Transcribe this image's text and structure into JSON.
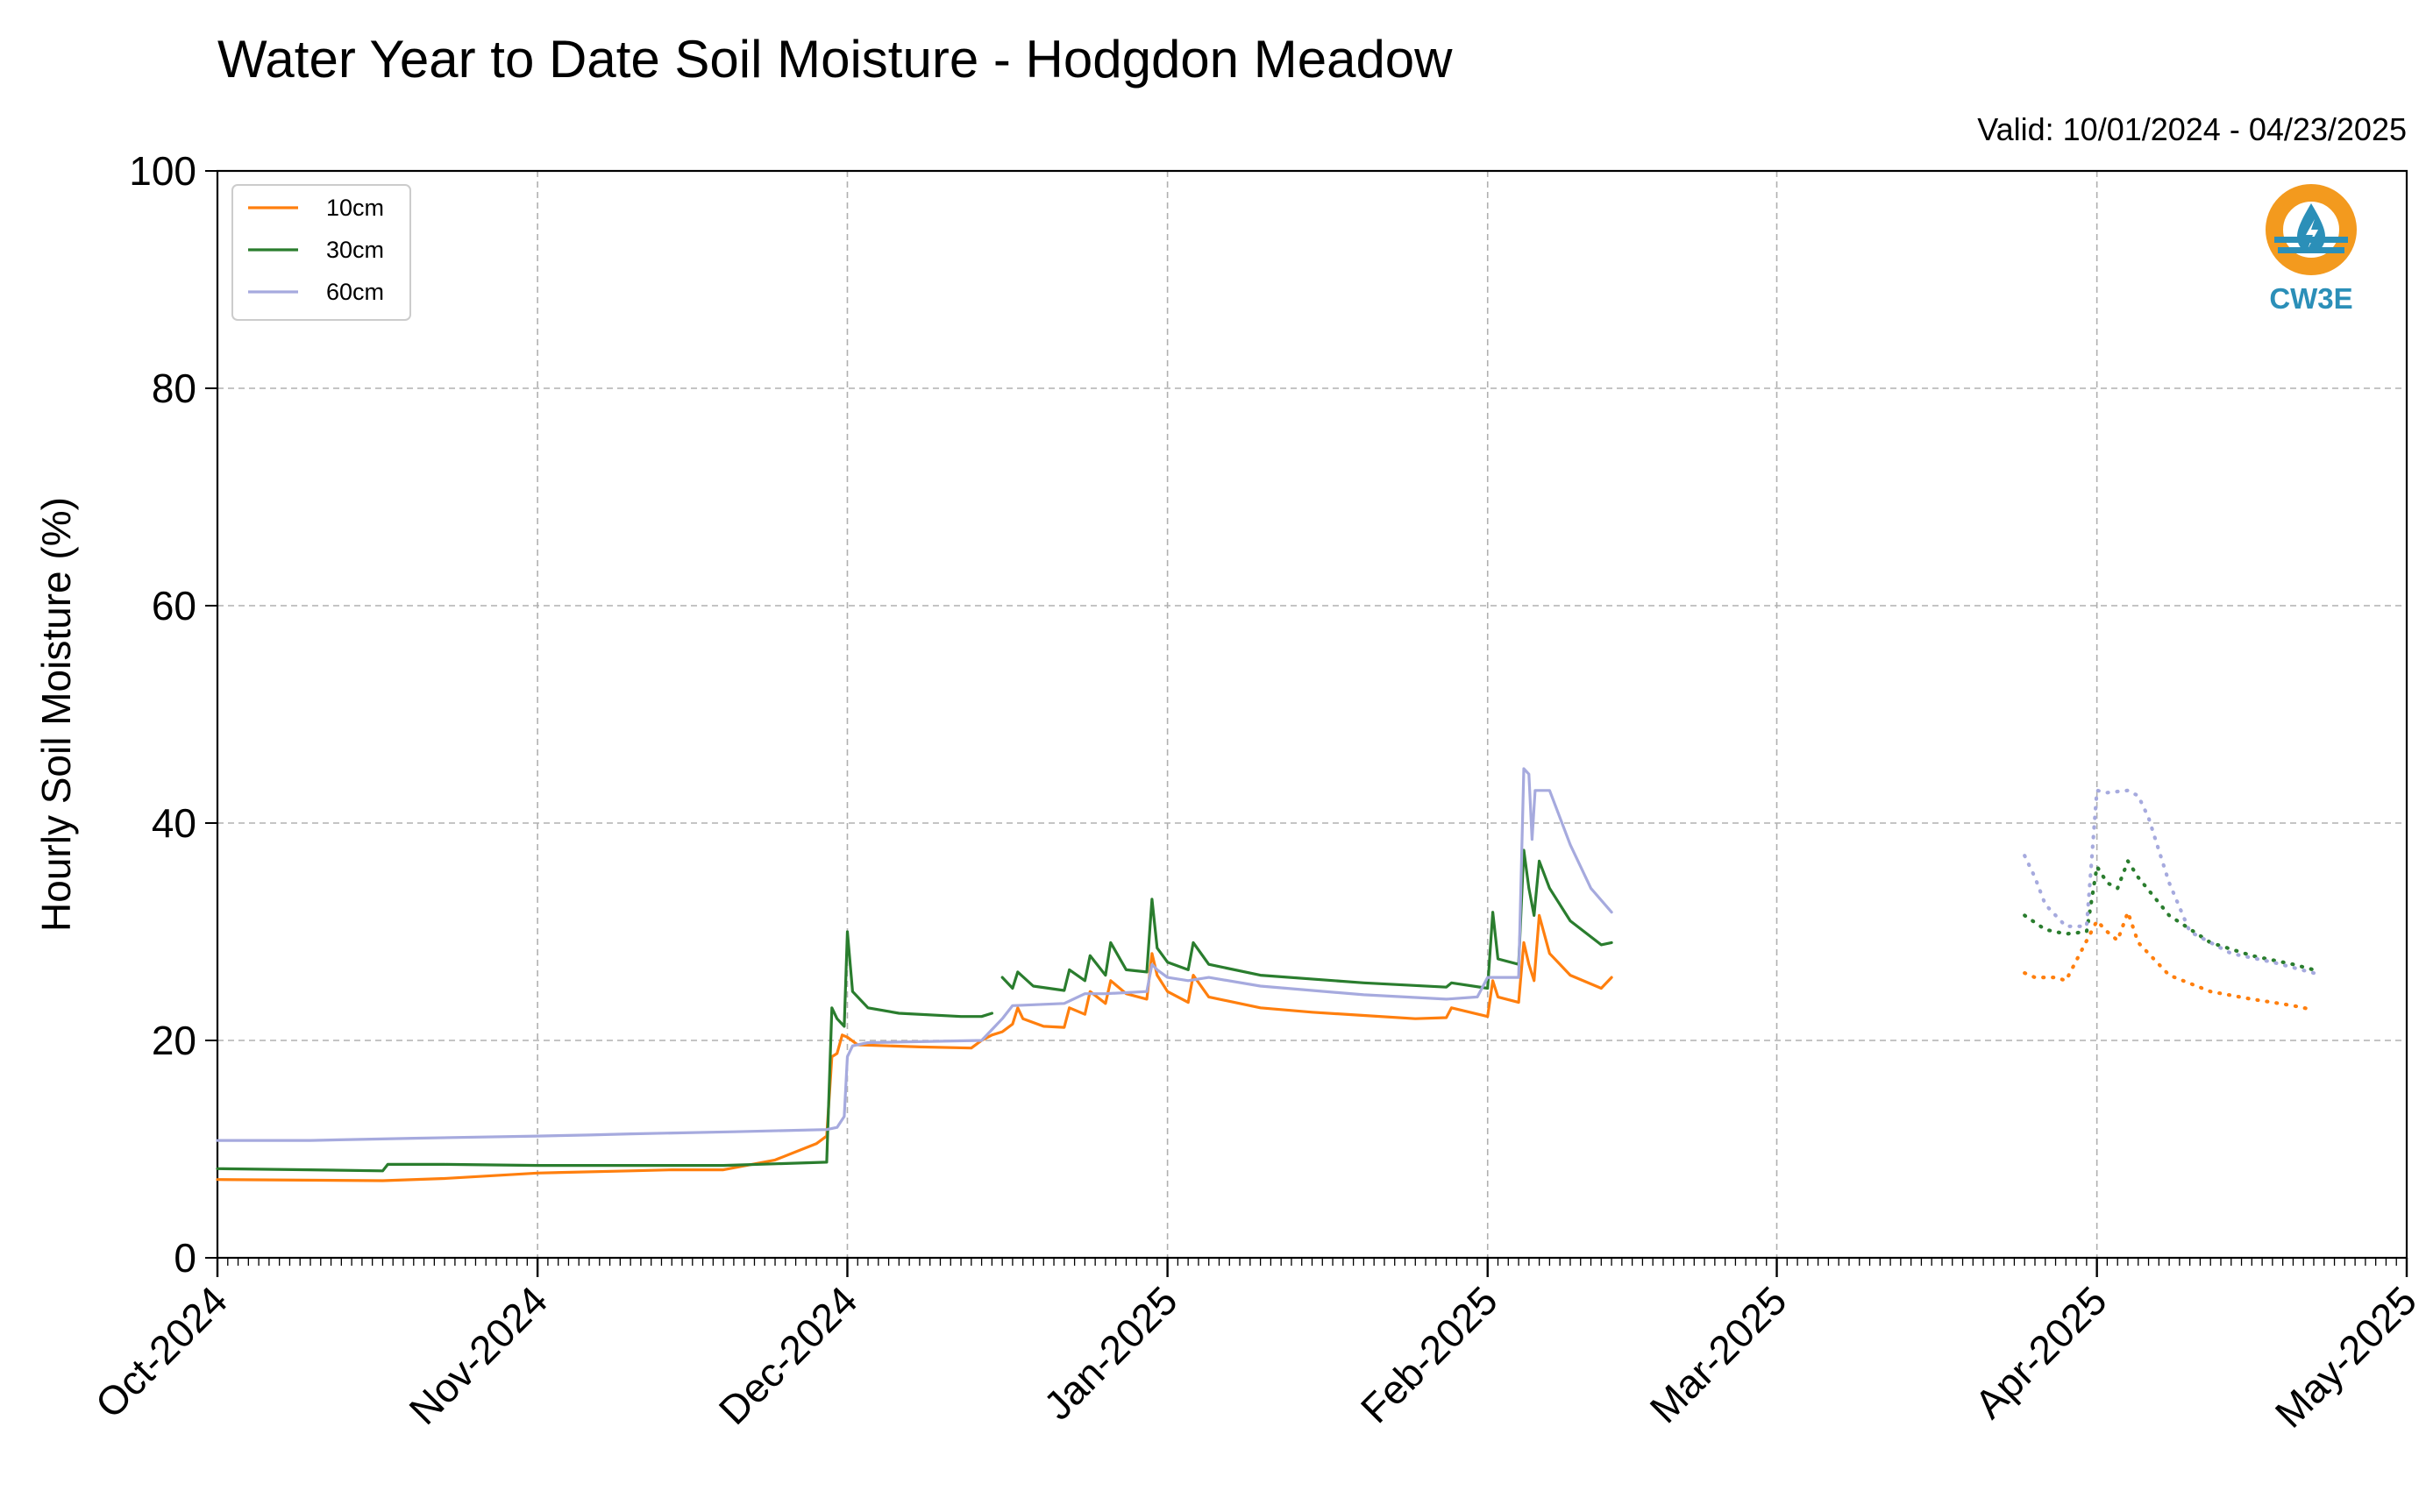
{
  "chart_data": {
    "type": "line",
    "title": "Water Year to Date Soil Moisture - Hodgdon Meadow",
    "subtitle": "Valid: 10/01/2024 - 04/23/2025",
    "xlabel": "",
    "ylabel": "Hourly Soil Moisture (%)",
    "ylim": [
      0,
      100
    ],
    "yticks": [
      0,
      20,
      40,
      60,
      80,
      100
    ],
    "xlim": [
      "2024-10-01",
      "2025-05-01"
    ],
    "xticks": [
      {
        "date": "2024-10-01",
        "label": "Oct-2024"
      },
      {
        "date": "2024-11-01",
        "label": "Nov-2024"
      },
      {
        "date": "2024-12-01",
        "label": "Dec-2024"
      },
      {
        "date": "2025-01-01",
        "label": "Jan-2025"
      },
      {
        "date": "2025-02-01",
        "label": "Feb-2025"
      },
      {
        "date": "2025-03-01",
        "label": "Mar-2025"
      },
      {
        "date": "2025-04-01",
        "label": "Apr-2025"
      },
      {
        "date": "2025-05-01",
        "label": "May-2025"
      }
    ],
    "grid": true,
    "legend_position": "top-left",
    "series": [
      {
        "name": "10cm",
        "color": "#ff7f0e",
        "segments": [
          {
            "style": "solid",
            "points": [
              [
                "2024-10-01",
                7.2
              ],
              [
                "2024-10-17",
                7.1
              ],
              [
                "2024-10-23",
                7.3
              ],
              [
                "2024-11-01",
                7.8
              ],
              [
                "2024-11-10",
                8.0
              ],
              [
                "2024-11-14",
                8.1
              ],
              [
                "2024-11-19",
                8.1
              ],
              [
                "2024-11-24",
                9.0
              ],
              [
                "2024-11-28",
                10.5
              ],
              [
                "2024-11-29",
                11.2
              ],
              [
                "2024-11-29.5",
                18.5
              ],
              [
                "2024-11-30",
                18.8
              ],
              [
                "2024-11-30.5",
                20.5
              ],
              [
                "2024-12-01",
                20.3
              ],
              [
                "2024-12-02",
                19.6
              ],
              [
                "2024-12-08",
                19.4
              ],
              [
                "2024-12-13",
                19.3
              ],
              [
                "2024-12-14",
                20.0
              ],
              [
                "2024-12-15",
                20.5
              ],
              [
                "2024-12-16",
                20.8
              ],
              [
                "2024-12-17",
                21.5
              ],
              [
                "2024-12-17.5",
                23.0
              ],
              [
                "2024-12-18",
                22.0
              ],
              [
                "2024-12-20",
                21.3
              ],
              [
                "2024-12-22",
                21.2
              ],
              [
                "2024-12-22.5",
                23.0
              ],
              [
                "2024-12-24",
                22.4
              ],
              [
                "2024-12-24.5",
                24.5
              ],
              [
                "2024-12-26",
                23.4
              ],
              [
                "2024-12-26.5",
                25.5
              ],
              [
                "2024-12-28",
                24.3
              ],
              [
                "2024-12-30",
                23.8
              ],
              [
                "2024-12-30.5",
                28.0
              ],
              [
                "2024-12-31",
                26.0
              ],
              [
                "2025-01-01",
                24.5
              ],
              [
                "2025-01-03",
                23.5
              ],
              [
                "2025-01-03.5",
                26.0
              ],
              [
                "2025-01-05",
                24.0
              ],
              [
                "2025-01-10",
                23.0
              ],
              [
                "2025-01-15",
                22.6
              ],
              [
                "2025-01-20",
                22.3
              ],
              [
                "2025-01-25",
                22.0
              ],
              [
                "2025-01-28",
                22.1
              ],
              [
                "2025-01-28.5",
                23.0
              ],
              [
                "2025-02-01",
                22.2
              ],
              [
                "2025-02-01.5",
                25.5
              ],
              [
                "2025-02-02",
                24.0
              ],
              [
                "2025-02-04",
                23.5
              ],
              [
                "2025-02-04.5",
                29.0
              ],
              [
                "2025-02-05",
                27.0
              ],
              [
                "2025-02-05.5",
                25.5
              ],
              [
                "2025-02-06",
                31.5
              ],
              [
                "2025-02-07",
                28.0
              ],
              [
                "2025-02-09",
                26.0
              ],
              [
                "2025-02-12",
                24.8
              ],
              [
                "2025-02-13",
                25.8
              ]
            ]
          },
          {
            "style": "dotted",
            "points": [
              [
                "2025-03-25",
                26.2
              ],
              [
                "2025-03-26",
                25.8
              ],
              [
                "2025-03-28",
                25.8
              ],
              [
                "2025-03-29",
                25.5
              ],
              [
                "2025-04-01",
                31.0
              ],
              [
                "2025-04-02",
                30.0
              ],
              [
                "2025-04-03",
                29.2
              ],
              [
                "2025-04-04",
                31.8
              ],
              [
                "2025-04-05",
                29.0
              ],
              [
                "2025-04-08",
                26.0
              ],
              [
                "2025-04-12",
                24.5
              ],
              [
                "2025-04-16",
                23.8
              ],
              [
                "2025-04-20",
                23.2
              ],
              [
                "2025-04-22",
                22.8
              ]
            ]
          }
        ]
      },
      {
        "name": "30cm",
        "color": "#2a7d2e",
        "segments": [
          {
            "style": "solid",
            "points": [
              [
                "2024-10-01",
                8.2
              ],
              [
                "2024-10-10",
                8.1
              ],
              [
                "2024-10-17",
                8.0
              ],
              [
                "2024-10-17.5",
                8.6
              ],
              [
                "2024-10-23",
                8.6
              ],
              [
                "2024-11-01",
                8.5
              ],
              [
                "2024-11-10",
                8.5
              ],
              [
                "2024-11-19",
                8.5
              ],
              [
                "2024-11-29",
                8.8
              ],
              [
                "2024-11-29.5",
                23.0
              ],
              [
                "2024-11-30",
                22.0
              ],
              [
                "2024-11-30.7",
                21.3
              ],
              [
                "2024-12-01",
                30.0
              ],
              [
                "2024-12-01.5",
                24.5
              ],
              [
                "2024-12-03",
                23.0
              ],
              [
                "2024-12-06",
                22.5
              ],
              [
                "2024-12-12",
                22.2
              ],
              [
                "2024-12-14",
                22.2
              ],
              [
                "2024-12-15",
                22.5
              ]
            ]
          },
          {
            "style": "solid",
            "points": [
              [
                "2024-12-16",
                25.8
              ],
              [
                "2024-12-17",
                24.8
              ],
              [
                "2024-12-17.5",
                26.3
              ],
              [
                "2024-12-19",
                25.0
              ],
              [
                "2024-12-22",
                24.6
              ],
              [
                "2024-12-22.5",
                26.5
              ],
              [
                "2024-12-24",
                25.5
              ],
              [
                "2024-12-24.5",
                27.8
              ],
              [
                "2024-12-26",
                26.0
              ],
              [
                "2024-12-26.5",
                29.0
              ],
              [
                "2024-12-28",
                26.5
              ],
              [
                "2024-12-30",
                26.3
              ],
              [
                "2024-12-30.5",
                33.0
              ],
              [
                "2024-12-31",
                28.5
              ],
              [
                "2025-01-01",
                27.2
              ],
              [
                "2025-01-03",
                26.5
              ],
              [
                "2025-01-03.5",
                29.0
              ],
              [
                "2025-01-05",
                27.0
              ],
              [
                "2025-01-10",
                26.0
              ],
              [
                "2025-01-20",
                25.3
              ],
              [
                "2025-01-28",
                24.9
              ],
              [
                "2025-01-28.5",
                25.3
              ],
              [
                "2025-02-01",
                24.8
              ],
              [
                "2025-02-01.5",
                31.8
              ],
              [
                "2025-02-02",
                27.5
              ],
              [
                "2025-02-04",
                27.0
              ],
              [
                "2025-02-04.5",
                37.5
              ],
              [
                "2025-02-05",
                34.0
              ],
              [
                "2025-02-05.5",
                31.5
              ],
              [
                "2025-02-06",
                36.5
              ],
              [
                "2025-02-07",
                34.0
              ],
              [
                "2025-02-09",
                31.0
              ],
              [
                "2025-02-12",
                28.8
              ],
              [
                "2025-02-13",
                29.0
              ]
            ]
          },
          {
            "style": "dotted",
            "points": [
              [
                "2025-03-25",
                31.5
              ],
              [
                "2025-03-27",
                30.2
              ],
              [
                "2025-03-29",
                29.8
              ],
              [
                "2025-03-31",
                30.0
              ],
              [
                "2025-04-01",
                36.0
              ],
              [
                "2025-04-02",
                34.5
              ],
              [
                "2025-04-03",
                34.0
              ],
              [
                "2025-04-04",
                36.5
              ],
              [
                "2025-04-05",
                35.0
              ],
              [
                "2025-04-08",
                31.5
              ],
              [
                "2025-04-12",
                29.0
              ],
              [
                "2025-04-16",
                27.8
              ],
              [
                "2025-04-20",
                27.0
              ],
              [
                "2025-04-22",
                26.5
              ]
            ]
          }
        ]
      },
      {
        "name": "60cm",
        "color": "#a6aade",
        "segments": [
          {
            "style": "solid",
            "points": [
              [
                "2024-10-01",
                10.8
              ],
              [
                "2024-10-10",
                10.8
              ],
              [
                "2024-10-20",
                11.0
              ],
              [
                "2024-11-01",
                11.2
              ],
              [
                "2024-11-06",
                11.3
              ],
              [
                "2024-11-10",
                11.4
              ],
              [
                "2024-11-20",
                11.6
              ],
              [
                "2024-11-29",
                11.8
              ],
              [
                "2024-11-30",
                12.0
              ],
              [
                "2024-11-30.7",
                13.0
              ],
              [
                "2024-12-01",
                18.5
              ],
              [
                "2024-12-01.5",
                19.5
              ],
              [
                "2024-12-03",
                19.8
              ],
              [
                "2024-12-14",
                20.0
              ],
              [
                "2024-12-15",
                21.0
              ],
              [
                "2024-12-16",
                22.0
              ],
              [
                "2024-12-17",
                23.2
              ],
              [
                "2024-12-22",
                23.4
              ],
              [
                "2024-12-24",
                24.3
              ],
              [
                "2024-12-26",
                24.3
              ],
              [
                "2024-12-30",
                24.5
              ],
              [
                "2024-12-30.5",
                27.0
              ],
              [
                "2024-12-31",
                26.5
              ],
              [
                "2025-01-01",
                25.8
              ],
              [
                "2025-01-03",
                25.5
              ],
              [
                "2025-01-05",
                25.8
              ],
              [
                "2025-01-10",
                25.0
              ],
              [
                "2025-01-20",
                24.2
              ],
              [
                "2025-01-28",
                23.8
              ],
              [
                "2025-01-31",
                24.0
              ],
              [
                "2025-02-01",
                25.8
              ],
              [
                "2025-02-04",
                25.8
              ],
              [
                "2025-02-04.5",
                45.0
              ],
              [
                "2025-02-05",
                44.5
              ],
              [
                "2025-02-05.3",
                38.5
              ],
              [
                "2025-02-05.6",
                43.0
              ],
              [
                "2025-02-07",
                43.0
              ],
              [
                "2025-02-09",
                38.0
              ],
              [
                "2025-02-11",
                34.0
              ],
              [
                "2025-02-13",
                31.8
              ]
            ]
          },
          {
            "style": "dotted",
            "points": [
              [
                "2025-03-25",
                37.0
              ],
              [
                "2025-03-26",
                35.0
              ],
              [
                "2025-03-27",
                32.5
              ],
              [
                "2025-03-29",
                30.5
              ],
              [
                "2025-03-31",
                30.5
              ],
              [
                "2025-04-01",
                43.0
              ],
              [
                "2025-04-02",
                42.8
              ],
              [
                "2025-04-04",
                43.0
              ],
              [
                "2025-04-05",
                42.5
              ],
              [
                "2025-04-06",
                40.5
              ],
              [
                "2025-04-08",
                34.5
              ],
              [
                "2025-04-10",
                30.0
              ],
              [
                "2025-04-14",
                28.0
              ],
              [
                "2025-04-18",
                27.2
              ],
              [
                "2025-04-22",
                26.2
              ]
            ]
          }
        ]
      }
    ]
  },
  "logo": {
    "text": "CW3E",
    "ring_color": "#f39a1e",
    "blue_color": "#2b8fb8"
  }
}
